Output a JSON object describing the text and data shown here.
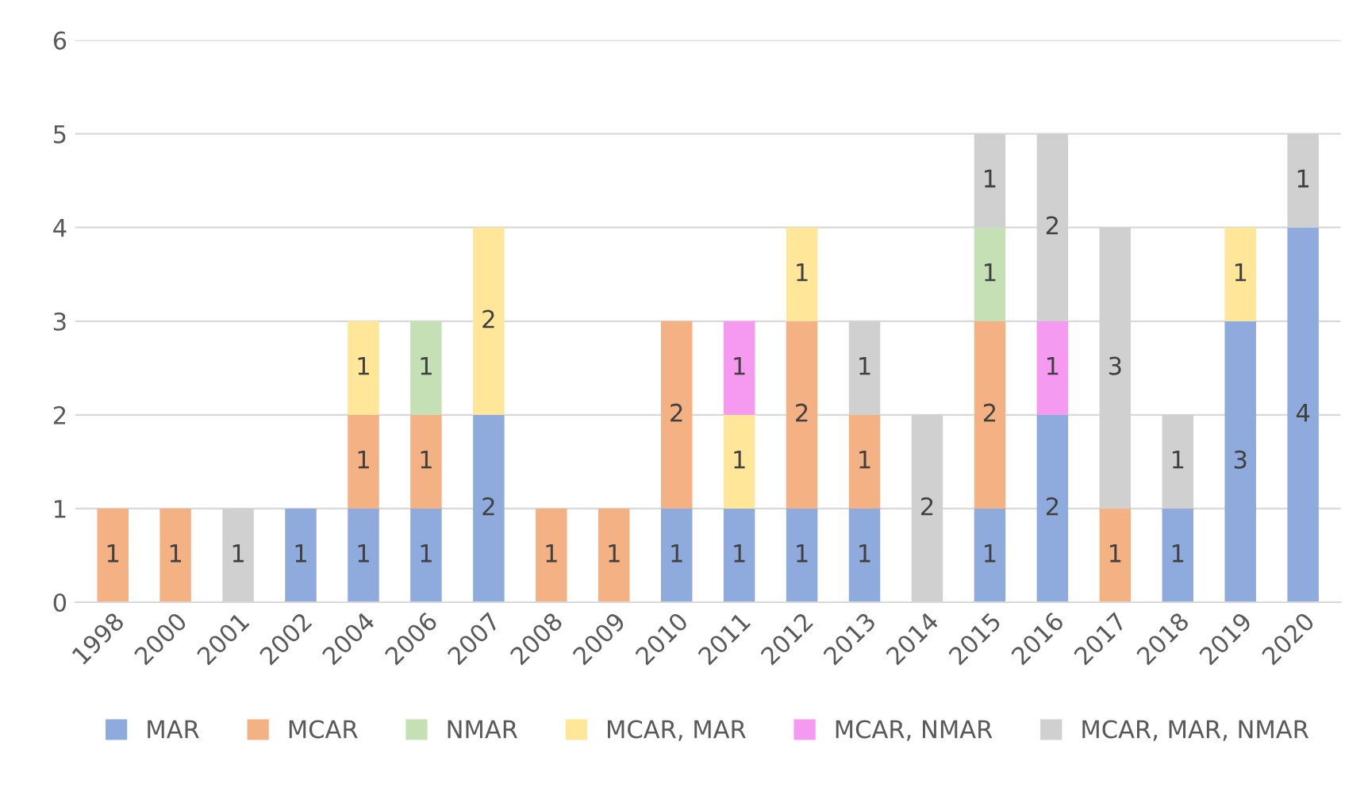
{
  "chart_data": {
    "type": "bar",
    "stacked": true,
    "data_labels": true,
    "grid": "y",
    "legend": "bottom",
    "ylim": [
      0,
      6
    ],
    "yticks": [
      0,
      1,
      2,
      3,
      4,
      5,
      6
    ],
    "categories": [
      "1998",
      "2000",
      "2001",
      "2002",
      "2004",
      "2006",
      "2007",
      "2008",
      "2009",
      "2010",
      "2011",
      "2012",
      "2013",
      "2014",
      "2015",
      "2016",
      "2017",
      "2018",
      "2019",
      "2020"
    ],
    "series": [
      {
        "name": "MAR",
        "color": "#8faadc",
        "values": [
          null,
          null,
          null,
          1,
          1,
          1,
          2,
          null,
          null,
          1,
          1,
          1,
          1,
          null,
          1,
          2,
          null,
          1,
          3,
          4
        ]
      },
      {
        "name": "MCAR",
        "color": "#f4b183",
        "values": [
          1,
          1,
          null,
          null,
          1,
          1,
          null,
          1,
          1,
          2,
          null,
          2,
          1,
          null,
          2,
          null,
          1,
          null,
          null,
          null
        ]
      },
      {
        "name": "NMAR",
        "color": "#c5e0b4",
        "values": [
          null,
          null,
          null,
          null,
          null,
          1,
          null,
          null,
          null,
          null,
          null,
          null,
          null,
          null,
          1,
          null,
          null,
          null,
          null,
          null
        ]
      },
      {
        "name": "MCAR, MAR",
        "color": "#ffe699",
        "values": [
          null,
          null,
          null,
          null,
          1,
          null,
          2,
          null,
          null,
          null,
          1,
          1,
          null,
          null,
          null,
          null,
          null,
          null,
          1,
          null
        ]
      },
      {
        "name": "MCAR, NMAR",
        "color": "#f59af0",
        "values": [
          null,
          null,
          null,
          null,
          null,
          null,
          null,
          null,
          null,
          null,
          1,
          null,
          null,
          null,
          null,
          1,
          null,
          null,
          null,
          null
        ]
      },
      {
        "name": "MCAR, MAR, NMAR",
        "color": "#d0d0d0",
        "values": [
          null,
          null,
          1,
          null,
          null,
          null,
          null,
          null,
          null,
          null,
          null,
          null,
          1,
          2,
          1,
          2,
          3,
          1,
          null,
          1
        ]
      }
    ]
  }
}
